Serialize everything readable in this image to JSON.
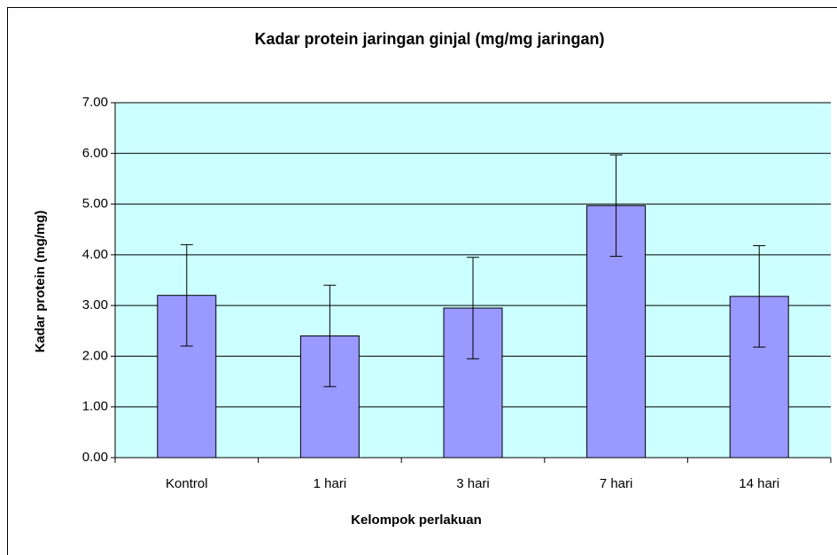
{
  "chart_data": {
    "type": "bar",
    "title": "Kadar protein jaringan ginjal (mg/mg jaringan)",
    "x_label": "Kelompok perlakuan",
    "y_label": "Kadar protein (mg/mg)",
    "categories": [
      "Kontrol",
      "1 hari",
      "3 hari",
      "7 hari",
      "14 hari"
    ],
    "values": [
      3.2,
      2.4,
      2.95,
      4.97,
      3.18
    ],
    "errors": [
      1.0,
      1.0,
      1.0,
      1.0,
      1.0
    ],
    "color": "#9999ff",
    "background": "#ccffff",
    "ylim": [
      0,
      7
    ],
    "yticks": [
      {
        "value": 0,
        "label": "0.00"
      },
      {
        "value": 1,
        "label": "1.00"
      },
      {
        "value": 2,
        "label": "2.00"
      },
      {
        "value": 3,
        "label": "3.00"
      },
      {
        "value": 4,
        "label": "4.00"
      },
      {
        "value": 5,
        "label": "5.00"
      },
      {
        "value": 6,
        "label": "6.00"
      },
      {
        "value": 7,
        "label": "7.00"
      }
    ],
    "grid": true
  }
}
